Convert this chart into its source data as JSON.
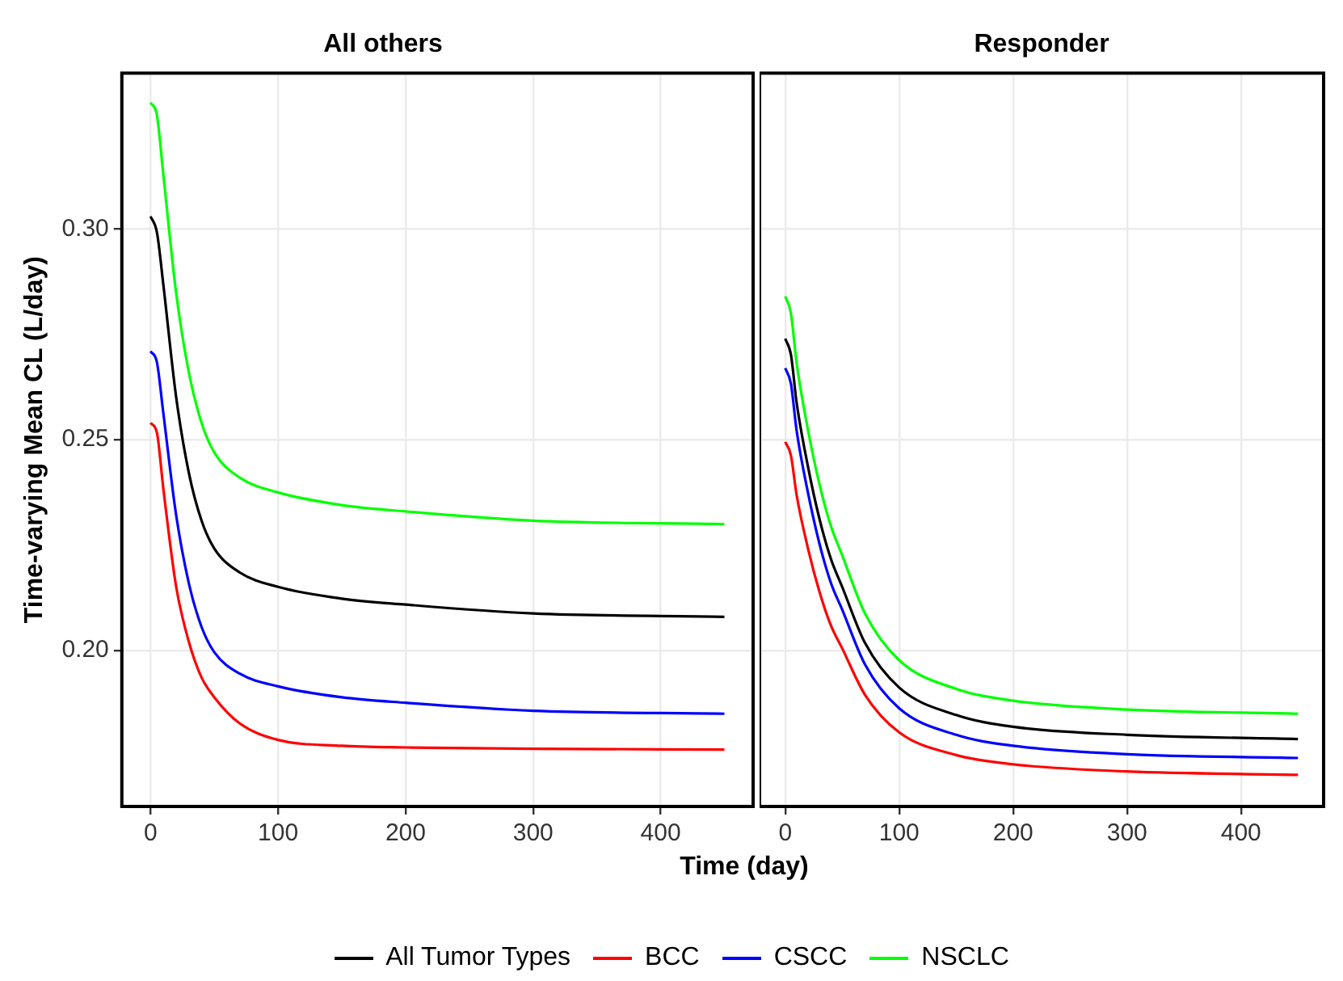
{
  "chart_data": [
    {
      "type": "line",
      "title": "All others",
      "ylabel": "Time-varying Mean CL (L/day)",
      "xlabel": "Time (day)",
      "legend": "bottom",
      "grid": true,
      "x": [
        0,
        5,
        10,
        20,
        30,
        40,
        50,
        70,
        100,
        150,
        200,
        300,
        450
      ],
      "xlim": [
        -22.5,
        472.5
      ],
      "xticks": [
        0,
        100,
        200,
        300,
        400
      ],
      "ylim": [
        0.163,
        0.337
      ],
      "yticks": [
        {
          "value": 0.2,
          "label": "0.20"
        },
        0.25,
        {
          "value": 0.3,
          "label": "0.30"
        }
      ],
      "series": [
        {
          "name": "All Tumor Types",
          "color": "#000000",
          "values": [
            0.303,
            0.2992,
            0.2869,
            0.2603,
            0.2422,
            0.2308,
            0.2242,
            0.2185,
            0.2151,
            0.2123,
            0.2109,
            0.2088,
            0.208
          ]
        },
        {
          "name": "BCC",
          "color": "#ff0000",
          "values": [
            0.254,
            0.2517,
            0.2385,
            0.2153,
            0.2021,
            0.1936,
            0.1889,
            0.1827,
            0.1788,
            0.1774,
            0.177,
            0.1767,
            0.1765
          ]
        },
        {
          "name": "CSCC",
          "color": "#0000ff",
          "values": [
            0.271,
            0.2684,
            0.2564,
            0.2323,
            0.216,
            0.2056,
            0.1996,
            0.1945,
            0.1915,
            0.1889,
            0.1876,
            0.1857,
            0.185
          ]
        },
        {
          "name": "NSCLC",
          "color": "#00ff00",
          "values": [
            0.33,
            0.327,
            0.313,
            0.285,
            0.266,
            0.254,
            0.247,
            0.241,
            0.2375,
            0.2345,
            0.233,
            0.2308,
            0.23
          ]
        }
      ]
    },
    {
      "type": "line",
      "title": "Responder",
      "grid": true,
      "tick_labels": "x",
      "x": [
        0,
        5,
        10,
        20,
        30,
        40,
        50,
        70,
        100,
        150,
        200,
        300,
        450
      ],
      "xlim": [
        -22.5,
        472.5
      ],
      "xticks": [
        0,
        100,
        200,
        300,
        400
      ],
      "ylim": [
        0.163,
        0.337
      ],
      "yticks": [
        0.2,
        0.25,
        0.3
      ],
      "series": [
        {
          "color": "#000000",
          "values": [
            0.274,
            0.2702,
            0.2588,
            0.2436,
            0.2313,
            0.2218,
            0.2151,
            0.2018,
            0.1912,
            0.1847,
            0.1819,
            0.18,
            0.179
          ]
        },
        {
          "color": "#ff0000",
          "values": [
            0.2495,
            0.2463,
            0.2369,
            0.2242,
            0.214,
            0.206,
            0.2005,
            0.1895,
            0.1806,
            0.1752,
            0.173,
            0.1713,
            0.1705
          ]
        },
        {
          "color": "#0000ff",
          "values": [
            0.267,
            0.2633,
            0.2522,
            0.2374,
            0.2254,
            0.2161,
            0.2097,
            0.1967,
            0.1863,
            0.18,
            0.1774,
            0.1754,
            0.1745
          ]
        },
        {
          "color": "#00ff00",
          "values": [
            0.284,
            0.28,
            0.2682,
            0.2523,
            0.2395,
            0.2296,
            0.2226,
            0.2088,
            0.1977,
            0.1909,
            0.1881,
            0.186,
            0.185
          ]
        }
      ]
    }
  ]
}
